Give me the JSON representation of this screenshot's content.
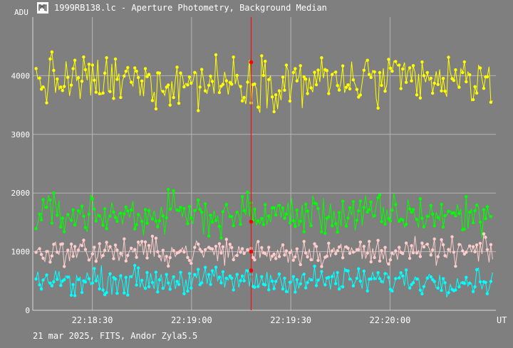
{
  "window": {
    "title": "1999RB138.lc - Aperture Photometry, Background Median",
    "icon": "lightcurve-app-icon"
  },
  "footer": {
    "info": "21 mar 2025, FITS, Andor Zyla5.5"
  },
  "colors": {
    "background": "#7f7f7f",
    "grid": "#b5b5b5",
    "axis": "#d8d8d8",
    "cursor": "#ff0000",
    "series": [
      "#ffff00",
      "#00ff00",
      "#ffcccc",
      "#00ffff"
    ]
  },
  "chart_data": {
    "type": "scatter",
    "ylabel": "ADU",
    "xlabel": "UT",
    "ylim": [
      0,
      5000
    ],
    "xlim": [
      "22:18:12",
      "22:20:32"
    ],
    "x_ticks": [
      "22:18:30",
      "22:19:00",
      "22:19:30",
      "22:20:00"
    ],
    "y_ticks": [
      0,
      1000,
      2000,
      3000,
      4000
    ],
    "grid": true,
    "cursor_time": "22:19:18",
    "series": [
      {
        "color": "#ffff00",
        "mean": 3900,
        "spread": 220
      },
      {
        "color": "#00ff00",
        "mean": 1630,
        "spread": 170
      },
      {
        "color": "#ffcccc",
        "mean": 1000,
        "spread": 110
      },
      {
        "color": "#00ffff",
        "mean": 510,
        "spread": 110
      }
    ],
    "cursor_values": [
      4230,
      1510,
      1000,
      680
    ]
  }
}
